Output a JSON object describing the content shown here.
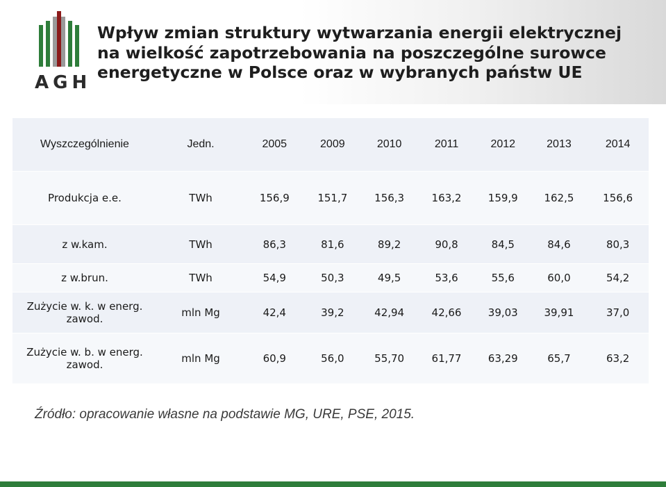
{
  "header": {
    "logo_text": "AGH",
    "title_lines": [
      "Wpływ zmian struktury wytwarzania energii elektrycznej",
      "na wielkość zapotrzebowania na poszczególne surowce",
      "energetyczne w Polsce oraz w wybranych państw UE"
    ]
  },
  "table": {
    "columns": [
      "Wyszczególnienie",
      "Jedn.",
      "2005",
      "2009",
      "2010",
      "2011",
      "2012",
      "2013",
      "2014"
    ],
    "rows": [
      [
        "Produkcja e.e.",
        "TWh",
        "156,9",
        "151,7",
        "156,3",
        "163,2",
        "159,9",
        "162,5",
        "156,6"
      ],
      [
        "z w.kam.",
        "TWh",
        "86,3",
        "81,6",
        "89,2",
        "90,8",
        "84,5",
        "84,6",
        "80,3"
      ],
      [
        "z w.brun.",
        "TWh",
        "54,9",
        "50,3",
        "49,5",
        "53,6",
        "55,6",
        "60,0",
        "54,2"
      ],
      [
        "Zużycie w. k. w energ. zawod.",
        "mln Mg",
        "42,4",
        "39,2",
        "42,94",
        "42,66",
        "39,03",
        "39,91",
        "37,0"
      ],
      [
        "Zużycie w. b. w energ. zawod.",
        "mln Mg",
        "60,9",
        "56,0",
        "55,70",
        "61,77",
        "63,29",
        "65,7",
        "63,2"
      ]
    ]
  },
  "source": "Źródło: opracowanie własne na podstawie MG, URE, PSE, 2015.",
  "colors": {
    "logo_green": "#2e7d3a",
    "logo_red": "#8b1a1a",
    "logo_gray": "#9a9a9a",
    "footer_green": "#2e7d3a"
  }
}
